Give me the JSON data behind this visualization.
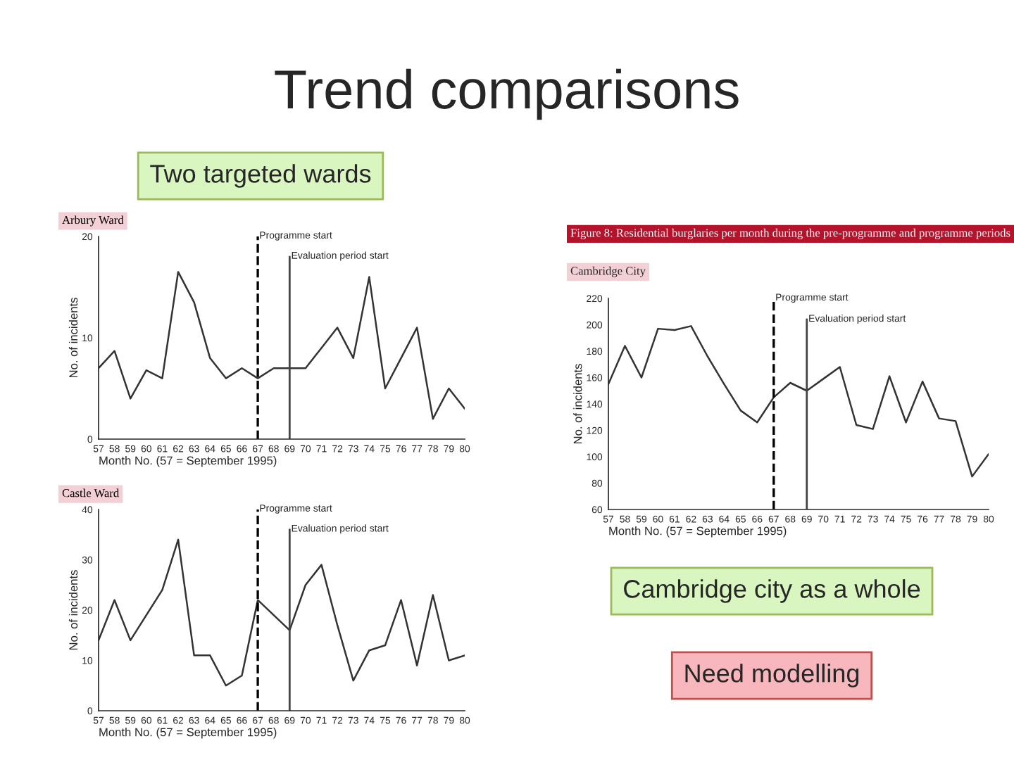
{
  "chart_data": [
    {
      "type": "line",
      "title": "Arbury Ward",
      "xlabel": "Month No. (57 = September 1995)",
      "ylabel": "No. of incidents",
      "annotations": [
        "Trend comparisons",
        "Two targeted wards"
      ],
      "x": [
        57,
        58,
        59,
        60,
        61,
        62,
        63,
        64,
        65,
        66,
        67,
        68,
        69,
        70,
        71,
        72,
        73,
        74,
        75,
        76,
        77,
        78,
        79,
        80
      ],
      "series": [
        {
          "color": "#333333",
          "values": [
            7,
            8.7,
            4,
            6.8,
            6,
            16.5,
            13.5,
            8,
            6,
            7,
            6,
            7,
            7,
            7,
            9,
            11,
            8,
            16,
            5,
            8,
            11,
            2,
            5,
            3
          ]
        }
      ],
      "xlim": [
        57,
        80
      ],
      "xticks": [
        57,
        58,
        59,
        60,
        61,
        62,
        63,
        64,
        65,
        66,
        67,
        68,
        69,
        70,
        71,
        72,
        73,
        74,
        75,
        76,
        77,
        78,
        79,
        80
      ],
      "ylim": [
        0,
        20
      ],
      "yticks": [
        0,
        10,
        20
      ],
      "grid": false,
      "legend": false,
      "marker": "none",
      "line_style": "solid",
      "ref_lines": [
        {
          "axis": "x",
          "value": 67,
          "label": "Programme start",
          "line_style": "dashed",
          "color": "#000000"
        },
        {
          "axis": "x",
          "value": 69,
          "label": "Evaluation period start",
          "line_style": "solid",
          "color": "#444444"
        }
      ]
    },
    {
      "type": "line",
      "title": "Castle Ward",
      "xlabel": "Month No. (57 = September 1995)",
      "ylabel": "No. of incidents",
      "x": [
        57,
        58,
        59,
        60,
        61,
        62,
        63,
        64,
        65,
        66,
        67,
        68,
        69,
        70,
        71,
        72,
        73,
        74,
        75,
        76,
        77,
        78,
        79,
        80
      ],
      "series": [
        {
          "color": "#333333",
          "values": [
            14,
            22,
            14,
            19,
            24,
            34,
            11,
            11,
            5,
            7,
            22,
            19,
            16,
            25,
            29,
            17,
            6,
            12,
            13,
            22,
            9,
            23,
            10,
            11
          ]
        }
      ],
      "xlim": [
        57,
        80
      ],
      "xticks": [
        57,
        58,
        59,
        60,
        61,
        62,
        63,
        64,
        65,
        66,
        67,
        68,
        69,
        70,
        71,
        72,
        73,
        74,
        75,
        76,
        77,
        78,
        79,
        80
      ],
      "ylim": [
        0,
        40
      ],
      "yticks": [
        0,
        10,
        20,
        30,
        40
      ],
      "grid": false,
      "legend": false,
      "marker": "none",
      "line_style": "solid",
      "ref_lines": [
        {
          "axis": "x",
          "value": 67,
          "label": "Programme start",
          "line_style": "dashed",
          "color": "#000000"
        },
        {
          "axis": "x",
          "value": 69,
          "label": "Evaluation period start",
          "line_style": "solid",
          "color": "#444444"
        }
      ]
    },
    {
      "type": "line",
      "title": "Figure 8: Residential burglaries per month during the pre-programme and programme periods",
      "subtitle": "Cambridge City",
      "xlabel": "Month No. (57 = September 1995)",
      "ylabel": "No. of incidents",
      "annotations": [
        "Cambridge city as a whole",
        "Need modelling"
      ],
      "x": [
        57,
        58,
        59,
        60,
        61,
        62,
        63,
        64,
        65,
        66,
        67,
        68,
        69,
        70,
        71,
        72,
        73,
        74,
        75,
        76,
        77,
        78,
        79,
        80
      ],
      "series": [
        {
          "color": "#333333",
          "values": [
            155,
            184,
            160,
            197,
            196,
            199,
            176,
            155,
            135,
            126,
            145,
            156,
            150,
            159,
            168,
            124,
            121,
            161,
            126,
            157,
            129,
            127,
            85,
            102
          ]
        }
      ],
      "xlim": [
        57,
        80
      ],
      "xticks": [
        57,
        58,
        59,
        60,
        61,
        62,
        63,
        64,
        65,
        66,
        67,
        68,
        69,
        70,
        71,
        72,
        73,
        74,
        75,
        76,
        77,
        78,
        79,
        80
      ],
      "ylim": [
        60,
        220
      ],
      "yticks": [
        60,
        80,
        100,
        120,
        140,
        160,
        180,
        200,
        220
      ],
      "grid": false,
      "legend": false,
      "marker": "none",
      "line_style": "solid",
      "ref_lines": [
        {
          "axis": "x",
          "value": 67,
          "label": "Programme start",
          "line_style": "dashed",
          "color": "#000000"
        },
        {
          "axis": "x",
          "value": 69,
          "label": "Evaluation period start",
          "line_style": "solid",
          "color": "#444444"
        }
      ]
    }
  ]
}
